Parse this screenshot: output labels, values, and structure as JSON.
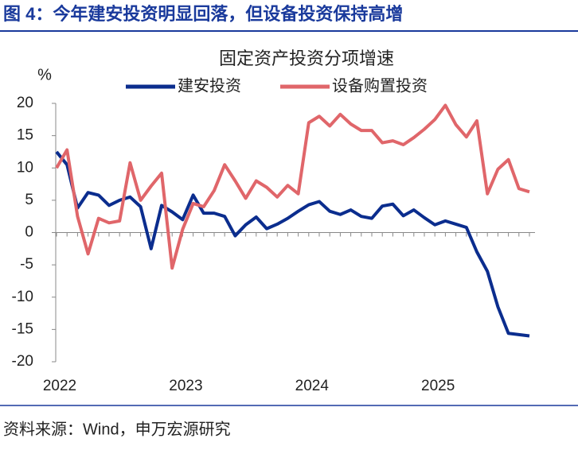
{
  "figure_title": "图 4：今年建安投资明显回落，但设备投资保持高增",
  "source": "资料来源：Wind，申万宏源研究",
  "chart_data": {
    "type": "line",
    "title": "固定资产投资分项增速",
    "y_label": "%",
    "categories": [
      "2022",
      null,
      null,
      null,
      null,
      null,
      null,
      null,
      null,
      null,
      null,
      null,
      "2023",
      null,
      null,
      null,
      null,
      null,
      null,
      null,
      null,
      null,
      null,
      null,
      "2024",
      null,
      null,
      null,
      null,
      null,
      null,
      null,
      null,
      null,
      null,
      null,
      "2025",
      null,
      null,
      null,
      null,
      null,
      null,
      null,
      null,
      null
    ],
    "series": [
      {
        "name": "建安投资",
        "color": "#0b2d8e",
        "values": [
          12.5,
          10.5,
          3.8,
          6.2,
          5.8,
          4.2,
          5.0,
          5.5,
          4.0,
          -2.5,
          4.2,
          3.2,
          2.0,
          5.8,
          3.0,
          3.0,
          2.5,
          -0.5,
          1.2,
          2.4,
          0.6,
          1.3,
          2.2,
          3.3,
          4.3,
          4.8,
          3.3,
          2.8,
          3.5,
          2.5,
          2.2,
          4.1,
          4.4,
          2.6,
          3.5,
          2.3,
          1.2,
          1.8,
          1.3,
          0.8,
          -3.0,
          -6.0,
          -11.5,
          -15.6,
          -15.8,
          -16.0
        ]
      },
      {
        "name": "设备购置投资",
        "color": "#e0666a",
        "values": [
          10.0,
          12.8,
          2.5,
          -3.3,
          2.2,
          1.5,
          1.8,
          10.8,
          5.0,
          7.2,
          9.2,
          -5.5,
          0.5,
          4.5,
          4.0,
          6.5,
          10.5,
          8.0,
          5.3,
          8.0,
          7.0,
          5.5,
          7.3,
          6.0,
          17.0,
          18.0,
          16.5,
          18.3,
          16.8,
          15.8,
          15.8,
          13.9,
          14.2,
          13.6,
          14.7,
          16.0,
          17.5,
          19.7,
          16.7,
          14.8,
          17.3,
          6.0,
          9.8,
          11.3,
          6.8,
          6.3
        ]
      }
    ],
    "ylim": [
      -20,
      20
    ],
    "yticks": [
      20,
      15,
      10,
      5,
      0,
      -5,
      -10,
      -15,
      -20
    ]
  }
}
